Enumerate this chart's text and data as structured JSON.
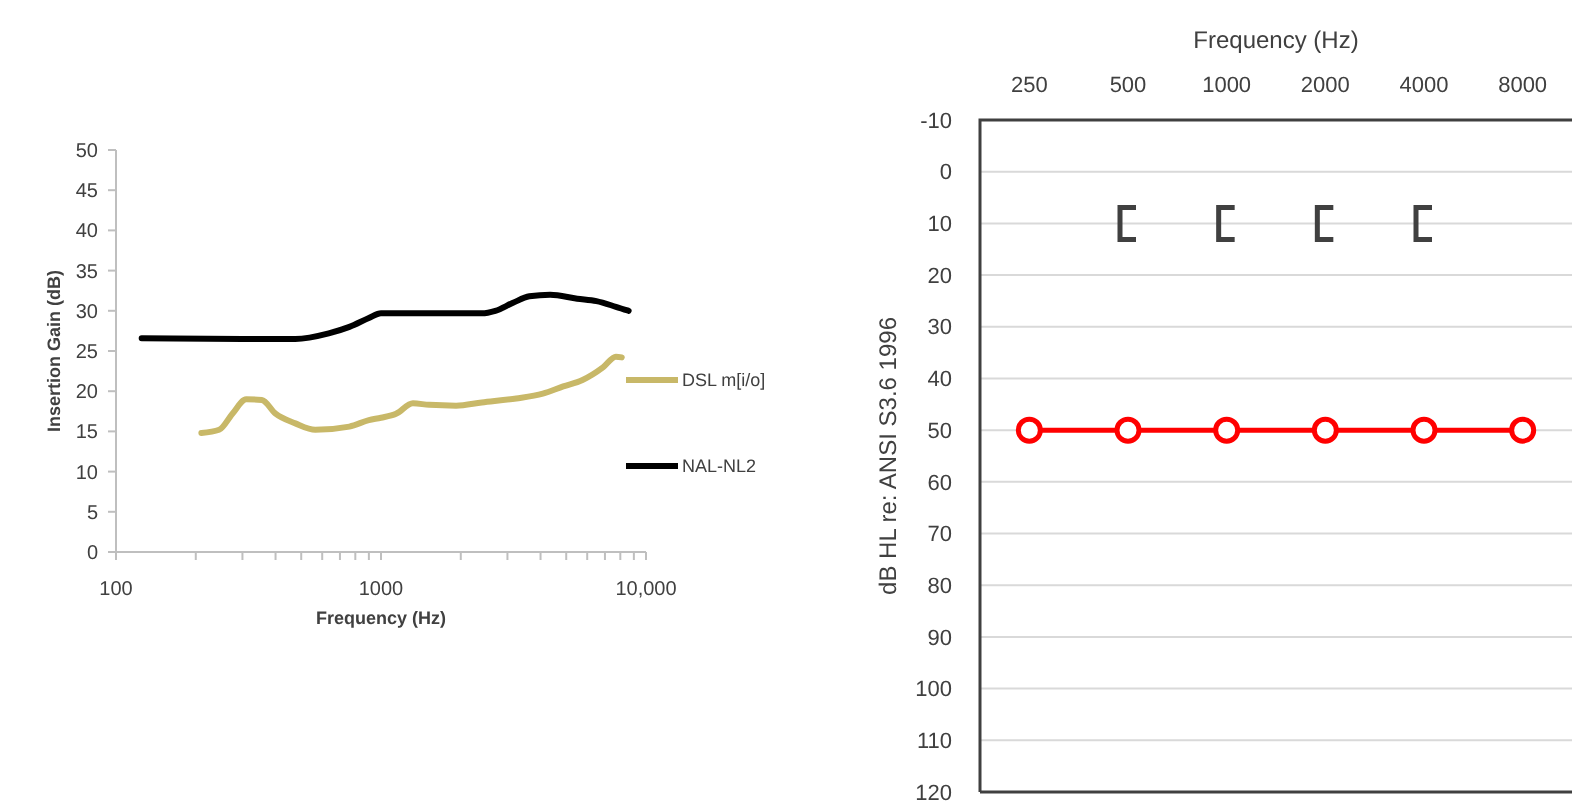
{
  "chart_data": [
    {
      "type": "line",
      "xlabel": "Frequency (Hz)",
      "ylabel": "Insertion Gain (dB)",
      "log": "x",
      "xlim": [
        100,
        10000
      ],
      "ylim": [
        0,
        50
      ],
      "xticks": [
        100,
        {
          "value": 200,
          "label": null
        },
        {
          "value": 300,
          "label": null
        },
        {
          "value": 400,
          "label": null
        },
        {
          "value": 500,
          "label": null
        },
        {
          "value": 600,
          "label": null
        },
        {
          "value": 700,
          "label": null
        },
        {
          "value": 800,
          "label": null
        },
        {
          "value": 900,
          "label": null
        },
        1000,
        {
          "value": 2000,
          "label": null
        },
        {
          "value": 3000,
          "label": null
        },
        {
          "value": 4000,
          "label": null
        },
        {
          "value": 5000,
          "label": null
        },
        {
          "value": 6000,
          "label": null
        },
        {
          "value": 7000,
          "label": null
        },
        {
          "value": 8000,
          "label": null
        },
        {
          "value": 9000,
          "label": null
        },
        {
          "value": 10000,
          "label": "10,000"
        }
      ],
      "yticks": [
        0,
        5,
        10,
        15,
        20,
        25,
        30,
        35,
        40,
        45,
        50
      ],
      "legend": "right",
      "marker": "none",
      "grid": false,
      "series": [
        {
          "name": "DSL m[i/o]",
          "color": "#c8b868",
          "x": [
            210,
            245,
            275,
            310,
            355,
            400,
            475,
            565,
            760,
            900,
            1000,
            1140,
            1320,
            1520,
            1920,
            2400,
            3240,
            4080,
            4870,
            5760,
            6900,
            7700,
            8100
          ],
          "values": [
            14.8,
            15.2,
            17.2,
            19,
            18.9,
            17.2,
            16,
            15.2,
            15.6,
            16.4,
            16.7,
            17.2,
            18.5,
            18.3,
            18.2,
            18.6,
            19.1,
            19.7,
            20.6,
            21.4,
            23,
            24.3,
            24.2
          ]
        },
        {
          "name": "NAL-NL2",
          "color": "#000000",
          "x": [
            125,
            300,
            475,
            635,
            760,
            900,
            1000,
            1350,
            2400,
            2700,
            3150,
            3630,
            4350,
            5500,
            6500,
            7700,
            8600
          ],
          "values": [
            26.6,
            26.5,
            26.5,
            27.2,
            28,
            29.1,
            29.7,
            29.7,
            29.7,
            30,
            31,
            31.8,
            32,
            31.5,
            31.2,
            30.5,
            30
          ]
        }
      ]
    },
    {
      "type": "line",
      "xlabel": "Frequency (Hz)",
      "ylabel": "dB HL re: ANSI S3.6 1996",
      "categories": [
        "250",
        "500",
        "1000",
        "2000",
        "4000",
        "8000"
      ],
      "ylim": [
        120,
        -10
      ],
      "yticks": [
        -10,
        0,
        10,
        20,
        30,
        40,
        50,
        60,
        70,
        80,
        90,
        100,
        110,
        120
      ],
      "grid": "y",
      "series": [
        {
          "marker": "circle",
          "color": "#ff0000",
          "values": [
            50,
            50,
            50,
            50,
            50,
            50
          ]
        },
        {
          "type": "scatter",
          "color": "#404040",
          "values": [
            null,
            10,
            10,
            10,
            10,
            null
          ]
        }
      ]
    }
  ]
}
